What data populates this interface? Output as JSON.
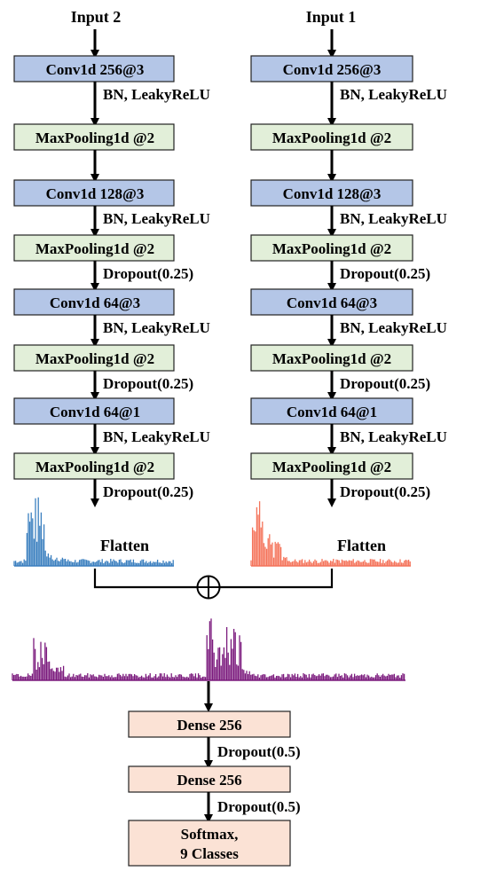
{
  "inputs": {
    "left": "Input 2",
    "right": "Input 1"
  },
  "branches": [
    {
      "blocks": [
        {
          "label": "Conv1d 256@3",
          "kind": "conv"
        },
        {
          "label": "MaxPooling1d @2",
          "kind": "pool"
        },
        {
          "label": "Conv1d 128@3",
          "kind": "conv"
        },
        {
          "label": "MaxPooling1d @2",
          "kind": "pool"
        },
        {
          "label": "Conv1d 64@3",
          "kind": "conv"
        },
        {
          "label": "MaxPooling1d @2",
          "kind": "pool"
        },
        {
          "label": "Conv1d 64@1",
          "kind": "conv"
        },
        {
          "label": "MaxPooling1d @2",
          "kind": "pool"
        }
      ],
      "arrow_labels": [
        "BN, LeakyReLU",
        "",
        "BN, LeakyReLU",
        "Dropout(0.25)",
        "BN, LeakyReLU",
        "Dropout(0.25)",
        "BN, LeakyReLU",
        "Dropout(0.25)"
      ]
    },
    {
      "blocks": [
        {
          "label": "Conv1d 256@3",
          "kind": "conv"
        },
        {
          "label": "MaxPooling1d @2",
          "kind": "pool"
        },
        {
          "label": "Conv1d 128@3",
          "kind": "conv"
        },
        {
          "label": "MaxPooling1d @2",
          "kind": "pool"
        },
        {
          "label": "Conv1d 64@3",
          "kind": "conv"
        },
        {
          "label": "MaxPooling1d @2",
          "kind": "pool"
        },
        {
          "label": "Conv1d 64@1",
          "kind": "conv"
        },
        {
          "label": "MaxPooling1d @2",
          "kind": "pool"
        }
      ],
      "arrow_labels": [
        "BN, LeakyReLU",
        "",
        "BN, LeakyReLU",
        "Dropout(0.25)",
        "BN, LeakyReLU",
        "Dropout(0.25)",
        "BN, LeakyReLU",
        "Dropout(0.25)"
      ]
    }
  ],
  "flatten_label": "Flatten",
  "merge_symbol": "⊕",
  "dense_blocks": [
    {
      "label": "Dense 256"
    },
    {
      "label": "Dense 256"
    },
    {
      "label": "Softmax,",
      "label2": "9 Classes"
    }
  ],
  "dense_arrow_labels": [
    "Dropout(0.5)",
    "Dropout(0.5)"
  ],
  "colors": {
    "conv": "#b4c6e7",
    "pool": "#e2efd9",
    "dense": "#fbe2d5",
    "signal_left": "#3a7fbf",
    "signal_right": "#f4735a",
    "signal_merged": "#7b1a7d"
  }
}
